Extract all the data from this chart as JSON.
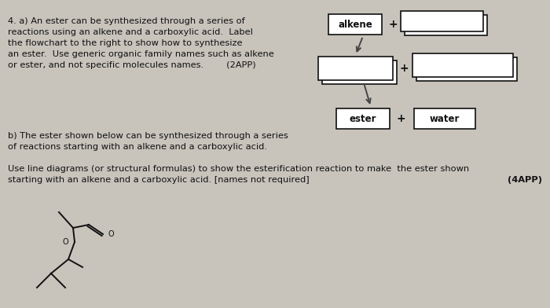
{
  "bg_color": "#c8c4bc",
  "text_color": "#111111",
  "title_lines": [
    "4. a) An ester can be synthesized through a series of",
    "reactions using an alkene and a carboxylic acid.  Label",
    "the flowchart to the right to show how to synthesize",
    "an ester.  Use generic organic family names such as alkene",
    "or ester, and not specific molecules names.        (2APP)"
  ],
  "b_lines": [
    "b) The ester shown below can be synthesized through a series",
    "of reactions starting with an alkene and a carboxylic acid."
  ],
  "c_lines": [
    "Use line diagrams (or structural formulas) to show the esterification reaction to make  the ester shown",
    "starting with an alkene and a carboxylic acid. [names not required]"
  ],
  "app4": "(4APP)",
  "label_alkene": "alkene",
  "label_ester": "ester",
  "label_water": "water",
  "box_fc": "#ffffff",
  "box_ec": "#111111",
  "plus": "+",
  "arrow_color": "#444444",
  "mol_color": "#111111",
  "font_size_main": 8.2,
  "font_size_label": 8.5
}
